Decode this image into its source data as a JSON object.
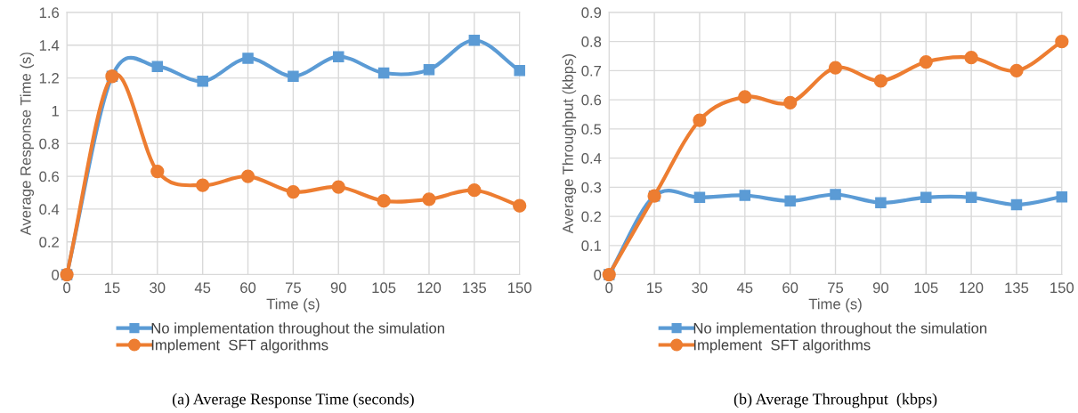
{
  "chart_data": [
    {
      "type": "line",
      "title": "(a) Average Response Time (seconds)",
      "xlabel": "Time (s)",
      "ylabel": "Average Response Time (s)",
      "x": [
        0,
        15,
        30,
        45,
        60,
        75,
        90,
        105,
        120,
        135,
        150
      ],
      "xlim": [
        0,
        150
      ],
      "xticks": [
        0,
        15,
        30,
        45,
        60,
        75,
        90,
        105,
        120,
        135,
        150
      ],
      "ylim": [
        0,
        1.6
      ],
      "yticks": [
        0,
        0.2,
        0.4,
        0.6,
        0.8,
        1,
        1.2,
        1.4,
        1.6
      ],
      "grid": true,
      "legend": "bottom",
      "series": [
        {
          "name": "No implementation throughout the simulation",
          "color": "#5b9bd5",
          "marker": "square",
          "values": [
            0,
            1.21,
            1.27,
            1.18,
            1.32,
            1.21,
            1.33,
            1.23,
            1.25,
            1.43,
            1.245
          ]
        },
        {
          "name": "Implement  SFT algorithms",
          "color": "#ed7d31",
          "marker": "circle",
          "values": [
            0,
            1.21,
            0.63,
            0.545,
            0.6,
            0.505,
            0.535,
            0.45,
            0.46,
            0.515,
            0.42
          ]
        }
      ]
    },
    {
      "type": "line",
      "title": "(b) Average Throughput  (kbps)",
      "xlabel": "Time (s)",
      "ylabel": "Average Throughput (kbps)",
      "x": [
        0,
        15,
        30,
        45,
        60,
        75,
        90,
        105,
        120,
        135,
        150
      ],
      "xlim": [
        0,
        150
      ],
      "xticks": [
        0,
        15,
        30,
        45,
        60,
        75,
        90,
        105,
        120,
        135,
        150
      ],
      "ylim": [
        0,
        0.9
      ],
      "yticks": [
        0,
        0.1,
        0.2,
        0.3,
        0.4,
        0.5,
        0.6,
        0.7,
        0.8,
        0.9
      ],
      "grid": true,
      "legend": "bottom",
      "series": [
        {
          "name": "No implementation throughout the simulation",
          "color": "#5b9bd5",
          "marker": "square",
          "values": [
            0,
            0.27,
            0.265,
            0.272,
            0.253,
            0.275,
            0.247,
            0.265,
            0.265,
            0.24,
            0.267
          ]
        },
        {
          "name": "Implement  SFT algorithms",
          "color": "#ed7d31",
          "marker": "circle",
          "values": [
            0,
            0.27,
            0.53,
            0.61,
            0.59,
            0.71,
            0.665,
            0.73,
            0.745,
            0.7,
            0.8
          ]
        }
      ]
    }
  ]
}
